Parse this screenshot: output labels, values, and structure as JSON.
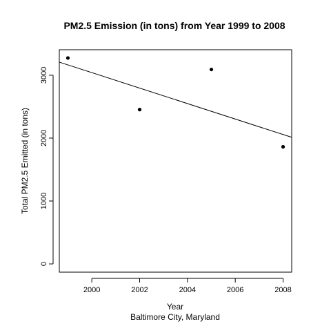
{
  "chart_data": {
    "type": "scatter",
    "title": "PM2.5 Emission (in tons) from Year 1999 to 2008",
    "xlabel": "Year",
    "subtitle": "Baltimore City, Maryland",
    "ylabel": "Total PM2.5 Emitted (in tons)",
    "xlim": [
      1998.64,
      2008.36
    ],
    "ylim": [
      -131,
      3405
    ],
    "xticks": [
      2000,
      2002,
      2004,
      2006,
      2008
    ],
    "yticks": [
      0,
      1000,
      2000,
      3000
    ],
    "points": [
      {
        "x": 1999,
        "y": 3274
      },
      {
        "x": 2002,
        "y": 2454
      },
      {
        "x": 2005,
        "y": 3091
      },
      {
        "x": 2008,
        "y": 1862
      }
    ],
    "regression_line": {
      "intercept_at_1999": 3164,
      "slope_per_year": -123
    },
    "grid": false,
    "legend": "none"
  }
}
